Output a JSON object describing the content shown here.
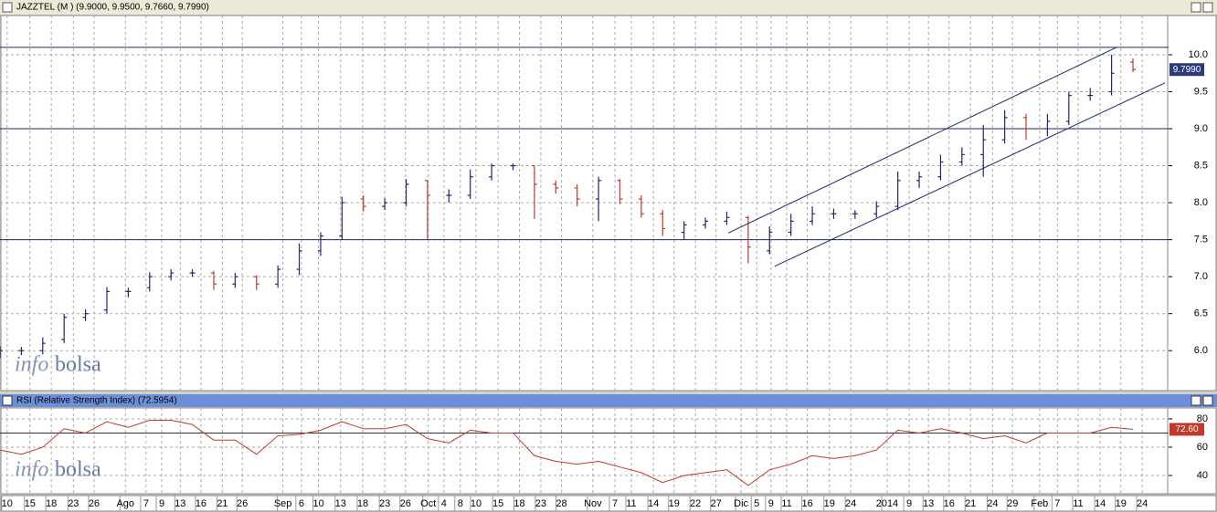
{
  "chart_data": [
    {
      "type": "ohlc",
      "title": "JAZZTEL (M ) (9.9000, 9.9500, 9.7660, 9.7990)",
      "x": [
        0,
        3,
        6,
        9,
        12,
        15,
        18,
        21,
        24,
        27,
        30,
        33,
        36,
        39,
        42,
        45,
        48,
        51,
        54,
        57,
        60,
        63,
        66,
        69,
        72,
        75,
        78,
        81,
        84,
        87,
        90,
        93,
        96,
        99,
        102,
        105,
        108,
        111,
        114,
        117,
        120,
        123,
        126,
        129,
        132,
        135,
        138,
        141,
        144,
        147,
        150,
        153,
        156,
        159
      ],
      "open": [
        5.95,
        6.0,
        6.0,
        6.15,
        6.45,
        6.55,
        6.8,
        6.85,
        7.0,
        7.05,
        7.05,
        6.9,
        7.0,
        6.9,
        7.1,
        7.35,
        7.55,
        8.05,
        7.95,
        8.0,
        8.3,
        8.1,
        8.1,
        8.35,
        8.5,
        8.5,
        8.25,
        8.2,
        8.05,
        8.3,
        8.05,
        7.85,
        7.6,
        7.7,
        7.75,
        7.8,
        7.35,
        7.6,
        7.75,
        7.85,
        7.85,
        7.85,
        7.95,
        8.3,
        8.35,
        8.55,
        8.65,
        8.85,
        9.15,
        9.0,
        9.1,
        9.45,
        9.5,
        9.9
      ],
      "high": [
        6.06,
        6.05,
        6.18,
        6.5,
        6.56,
        6.86,
        6.85,
        7.06,
        7.1,
        7.1,
        7.08,
        7.05,
        7.02,
        7.15,
        7.45,
        7.6,
        8.08,
        8.1,
        8.06,
        8.32,
        8.3,
        8.18,
        8.45,
        8.53,
        8.53,
        8.5,
        8.3,
        8.25,
        8.35,
        8.32,
        8.1,
        7.9,
        7.75,
        7.8,
        7.88,
        7.82,
        7.68,
        7.85,
        7.95,
        7.92,
        7.9,
        8.02,
        8.42,
        8.42,
        8.65,
        8.75,
        9.05,
        9.25,
        9.2,
        9.2,
        9.5,
        9.55,
        10.0,
        9.95
      ],
      "low": [
        5.9,
        5.94,
        5.95,
        6.1,
        6.4,
        6.5,
        6.72,
        6.8,
        6.95,
        7.0,
        6.82,
        6.85,
        6.82,
        6.85,
        7.02,
        7.28,
        7.5,
        7.88,
        7.9,
        7.95,
        7.5,
        8.0,
        8.05,
        8.3,
        8.44,
        7.78,
        8.12,
        7.95,
        7.75,
        7.98,
        7.8,
        7.55,
        7.5,
        7.65,
        7.7,
        7.18,
        7.3,
        7.55,
        7.7,
        7.78,
        7.78,
        7.8,
        7.9,
        8.2,
        8.3,
        8.5,
        8.35,
        8.8,
        8.85,
        8.9,
        9.05,
        9.38,
        9.45,
        9.766
      ],
      "close": [
        6.0,
        6.0,
        6.1,
        6.45,
        6.5,
        6.8,
        6.8,
        7.0,
        7.05,
        7.05,
        6.9,
        7.0,
        6.9,
        7.1,
        7.35,
        7.55,
        8.0,
        7.95,
        8.0,
        8.25,
        8.1,
        8.1,
        8.35,
        8.5,
        8.5,
        8.25,
        8.2,
        8.05,
        8.3,
        8.05,
        7.85,
        7.65,
        7.7,
        7.75,
        7.8,
        7.4,
        7.6,
        7.75,
        7.85,
        7.85,
        7.85,
        7.95,
        8.3,
        8.35,
        8.55,
        8.65,
        8.85,
        9.15,
        9.0,
        9.1,
        9.45,
        9.45,
        9.75,
        9.799
      ],
      "up_color": "#1f2a6e",
      "down_color": "#c0392b",
      "last_value": 9.799,
      "last_label": "9.7990",
      "xlim": [
        0,
        164
      ],
      "ylim": [
        5.46,
        10.53
      ],
      "yticks": [
        {
          "value": 6.0,
          "label": "6.0"
        },
        {
          "value": 6.5,
          "label": "6.5"
        },
        {
          "value": 7.0,
          "label": "7.0"
        },
        {
          "value": 7.5,
          "label": "7.5"
        },
        {
          "value": 8.0,
          "label": "8.0"
        },
        {
          "value": 8.5,
          "label": "8.5"
        },
        {
          "value": 9.0,
          "label": "9.0"
        },
        {
          "value": 9.5,
          "label": "9.5"
        },
        {
          "value": 10.0,
          "label": "10.0"
        }
      ],
      "hlines": [
        10.1,
        9.0,
        7.5
      ],
      "trendlines": [
        [
          [
            102.2,
            7.59
          ],
          [
            156.7,
            10.1
          ]
        ],
        [
          [
            108.7,
            7.14
          ],
          [
            163.5,
            9.62
          ]
        ]
      ],
      "watermark": [
        "info",
        "bolsa"
      ],
      "grid": true
    },
    {
      "type": "line",
      "title": "RSI (Relative Strength Index) (72.5954)",
      "x": [
        0,
        3,
        6,
        9,
        12,
        15,
        18,
        21,
        24,
        27,
        30,
        33,
        36,
        39,
        42,
        45,
        48,
        51,
        54,
        57,
        60,
        63,
        66,
        69,
        72,
        75,
        78,
        81,
        84,
        87,
        90,
        93,
        96,
        99,
        102,
        105,
        108,
        111,
        114,
        117,
        120,
        123,
        126,
        129,
        132,
        135,
        138,
        141,
        144,
        147,
        150,
        153,
        156,
        159
      ],
      "series": [
        {
          "name": "RSI",
          "color": "#c0392b",
          "values": [
            58,
            55,
            60,
            73,
            70,
            78,
            74,
            79,
            79,
            76,
            65,
            65,
            55,
            68,
            69,
            72,
            78,
            73,
            73,
            76,
            66,
            63,
            72,
            70,
            70,
            54,
            50,
            48,
            50,
            46,
            42,
            35,
            40,
            42,
            44,
            33,
            44,
            48,
            54,
            52,
            54,
            58,
            72,
            70,
            73,
            70,
            66,
            68,
            63,
            70,
            70,
            70,
            74,
            72.5954
          ]
        }
      ],
      "last_value": 72.5954,
      "last_label": "72.60",
      "last_color": "#c0392b",
      "xlim": [
        0,
        164
      ],
      "ylim": [
        27.1,
        87.7
      ],
      "yticks": [
        40,
        60,
        80
      ],
      "hlines": [
        70
      ],
      "xticks": [
        {
          "value": 1.0,
          "label": "10"
        },
        {
          "value": 4.2,
          "label": "15"
        },
        {
          "value": 7.2,
          "label": "18"
        },
        {
          "value": 10.3,
          "label": "23"
        },
        {
          "value": 13.2,
          "label": "26"
        },
        {
          "value": 17.6,
          "label": "Ago"
        },
        {
          "value": 20.5,
          "label": "7"
        },
        {
          "value": 22.7,
          "label": "9"
        },
        {
          "value": 25.3,
          "label": "13"
        },
        {
          "value": 28.2,
          "label": "16"
        },
        {
          "value": 31.2,
          "label": "21"
        },
        {
          "value": 34.0,
          "label": "26"
        },
        {
          "value": 39.7,
          "label": "Sep"
        },
        {
          "value": 42.3,
          "label": "6"
        },
        {
          "value": 44.7,
          "label": "10"
        },
        {
          "value": 47.8,
          "label": "13"
        },
        {
          "value": 50.9,
          "label": "18"
        },
        {
          "value": 54.0,
          "label": "23"
        },
        {
          "value": 56.9,
          "label": "26"
        },
        {
          "value": 60.1,
          "label": "Oct"
        },
        {
          "value": 62.3,
          "label": "4"
        },
        {
          "value": 64.6,
          "label": "8"
        },
        {
          "value": 66.8,
          "label": "10"
        },
        {
          "value": 69.9,
          "label": "15"
        },
        {
          "value": 72.9,
          "label": "18"
        },
        {
          "value": 75.9,
          "label": "23"
        },
        {
          "value": 78.8,
          "label": "28"
        },
        {
          "value": 83.2,
          "label": "Nov"
        },
        {
          "value": 86.3,
          "label": "7"
        },
        {
          "value": 88.6,
          "label": "11"
        },
        {
          "value": 91.7,
          "label": "14"
        },
        {
          "value": 94.6,
          "label": "19"
        },
        {
          "value": 97.6,
          "label": "22"
        },
        {
          "value": 100.5,
          "label": "27"
        },
        {
          "value": 104.0,
          "label": "Dic"
        },
        {
          "value": 106.2,
          "label": "5"
        },
        {
          "value": 108.2,
          "label": "9"
        },
        {
          "value": 110.4,
          "label": "11"
        },
        {
          "value": 113.3,
          "label": "16"
        },
        {
          "value": 116.4,
          "label": "19"
        },
        {
          "value": 119.4,
          "label": "24"
        },
        {
          "value": 124.5,
          "label": "2014"
        },
        {
          "value": 127.6,
          "label": "9"
        },
        {
          "value": 130.3,
          "label": "13"
        },
        {
          "value": 133.2,
          "label": "16"
        },
        {
          "value": 136.2,
          "label": "21"
        },
        {
          "value": 139.3,
          "label": "24"
        },
        {
          "value": 142.1,
          "label": "29"
        },
        {
          "value": 145.9,
          "label": "Feb"
        },
        {
          "value": 148.4,
          "label": "7"
        },
        {
          "value": 151.3,
          "label": "11"
        },
        {
          "value": 154.4,
          "label": "14"
        },
        {
          "value": 157.3,
          "label": "19"
        },
        {
          "value": 160.3,
          "label": "24"
        }
      ],
      "watermark": [
        "info",
        "bolsa"
      ],
      "grid": true
    }
  ]
}
